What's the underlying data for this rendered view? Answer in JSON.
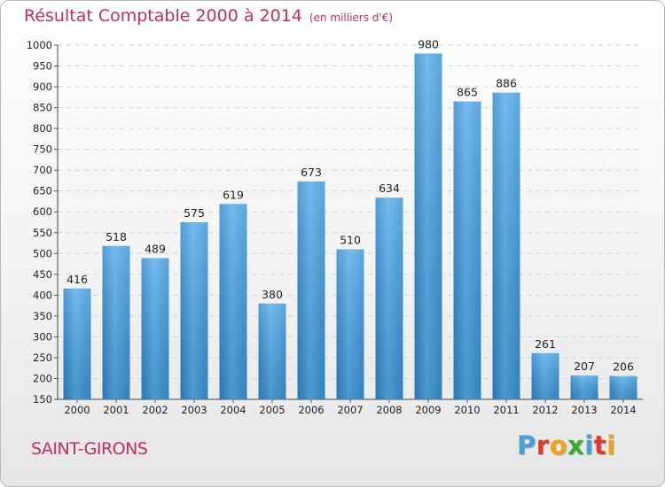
{
  "header": {
    "title": "Résultat Comptable 2000 à 2014",
    "unit": "(en milliers d'€)"
  },
  "footer": {
    "city": "SAINT-GIRONS",
    "logo": {
      "letters": [
        "P",
        "r",
        "o",
        "x",
        "i",
        "t",
        "i"
      ],
      "colors": [
        "#4aa0d8",
        "#e03a2e",
        "#f0a21c",
        "#3aaa35",
        "#4aa0d8",
        "#e03a2e",
        "#f0a21c"
      ]
    }
  },
  "chart_data": {
    "type": "bar",
    "title": "Résultat Comptable 2000 à 2014",
    "subtitle": "(en milliers d'€)",
    "xlabel": "",
    "ylabel": "",
    "categories": [
      "2000",
      "2001",
      "2002",
      "2003",
      "2004",
      "2005",
      "2006",
      "2007",
      "2008",
      "2009",
      "2010",
      "2011",
      "2012",
      "2013",
      "2014"
    ],
    "values": [
      416,
      518,
      489,
      575,
      619,
      380,
      673,
      510,
      634,
      980,
      865,
      886,
      261,
      207,
      206
    ],
    "ylim": [
      150,
      1000
    ],
    "yticks": [
      150,
      200,
      250,
      300,
      350,
      400,
      450,
      500,
      550,
      600,
      650,
      700,
      750,
      800,
      850,
      900,
      950,
      1000
    ],
    "grid": true,
    "bar_color": "#3f97db",
    "legend": "none"
  }
}
